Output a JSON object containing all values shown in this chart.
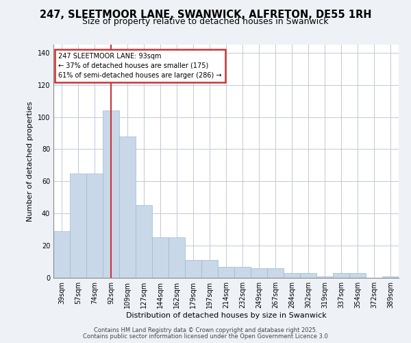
{
  "title": "247, SLEETMOOR LANE, SWANWICK, ALFRETON, DE55 1RH",
  "subtitle": "Size of property relative to detached houses in Swanwick",
  "xlabel": "Distribution of detached houses by size in Swanwick",
  "ylabel": "Number of detached properties",
  "bar_color": "#c8d8e8",
  "bar_edge_color": "#a0b8cc",
  "bar_values": [
    29,
    65,
    65,
    104,
    88,
    45,
    25,
    25,
    11,
    11,
    7,
    7,
    6,
    6,
    3,
    3,
    1,
    3,
    3,
    0,
    1
  ],
  "categories": [
    "39sqm",
    "57sqm",
    "74sqm",
    "92sqm",
    "109sqm",
    "127sqm",
    "144sqm",
    "162sqm",
    "179sqm",
    "197sqm",
    "214sqm",
    "232sqm",
    "249sqm",
    "267sqm",
    "284sqm",
    "302sqm",
    "319sqm",
    "337sqm",
    "354sqm",
    "372sqm",
    "389sqm"
  ],
  "highlight_bar_index": 3,
  "highlight_color": "#cc3333",
  "annotation_line1": "247 SLEETMOOR LANE: 93sqm",
  "annotation_line2": "← 37% of detached houses are smaller (175)",
  "annotation_line3": "61% of semi-detached houses are larger (286) →",
  "annotation_box_color": "#ffffff",
  "annotation_box_edge": "#cc3333",
  "ylim": [
    0,
    145
  ],
  "yticks": [
    0,
    20,
    40,
    60,
    80,
    100,
    120,
    140
  ],
  "footer1": "Contains HM Land Registry data © Crown copyright and database right 2025.",
  "footer2": "Contains public sector information licensed under the Open Government Licence 3.0",
  "bg_color": "#eef2f7",
  "plot_bg_color": "#ffffff",
  "grid_color": "#c0c8d8"
}
